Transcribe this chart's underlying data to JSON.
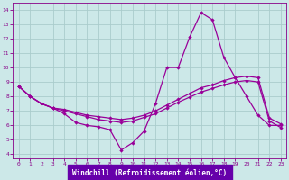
{
  "xlabel": "Windchill (Refroidissement éolien,°C)",
  "bg_color": "#cce8e8",
  "grid_color": "#aacccc",
  "line_color": "#990099",
  "xlabel_bg": "#6600aa",
  "xlabel_fg": "#ffffff",
  "xlim_min": -0.5,
  "xlim_max": 23.5,
  "ylim_min": 3.7,
  "ylim_max": 14.5,
  "xticks": [
    0,
    1,
    2,
    3,
    4,
    5,
    6,
    7,
    8,
    9,
    10,
    11,
    12,
    13,
    14,
    15,
    16,
    17,
    18,
    19,
    20,
    21,
    22,
    23
  ],
  "yticks": [
    4,
    5,
    6,
    7,
    8,
    9,
    10,
    11,
    12,
    13,
    14
  ],
  "line1_x": [
    0,
    1,
    2,
    3,
    4,
    5,
    6,
    7,
    8,
    9,
    10,
    11,
    12,
    13,
    14,
    15,
    16,
    17,
    18,
    19,
    20,
    21,
    22,
    23
  ],
  "line1_y": [
    8.7,
    8.0,
    7.5,
    7.2,
    6.8,
    6.2,
    6.0,
    5.9,
    5.7,
    4.3,
    4.8,
    5.6,
    7.5,
    10.0,
    10.0,
    12.1,
    13.8,
    13.3,
    10.7,
    9.3,
    8.0,
    6.7,
    6.0,
    6.0
  ],
  "line2_x": [
    0,
    1,
    2,
    3,
    4,
    5,
    6,
    7,
    8,
    9,
    10,
    11,
    12,
    13,
    14,
    15,
    16,
    17,
    18,
    19,
    20,
    21,
    22,
    23
  ],
  "line2_y": [
    8.7,
    8.0,
    7.5,
    7.2,
    7.1,
    6.9,
    6.7,
    6.6,
    6.5,
    6.4,
    6.5,
    6.7,
    7.0,
    7.4,
    7.8,
    8.2,
    8.6,
    8.8,
    9.1,
    9.3,
    9.4,
    9.3,
    6.5,
    6.1
  ],
  "line3_x": [
    0,
    1,
    2,
    3,
    4,
    5,
    6,
    7,
    8,
    9,
    10,
    11,
    12,
    13,
    14,
    15,
    16,
    17,
    18,
    19,
    20,
    21,
    22,
    23
  ],
  "line3_y": [
    8.7,
    8.0,
    7.5,
    7.2,
    7.0,
    6.8,
    6.6,
    6.4,
    6.3,
    6.2,
    6.3,
    6.55,
    6.8,
    7.2,
    7.6,
    7.95,
    8.3,
    8.55,
    8.8,
    9.0,
    9.1,
    9.0,
    6.3,
    5.85
  ]
}
